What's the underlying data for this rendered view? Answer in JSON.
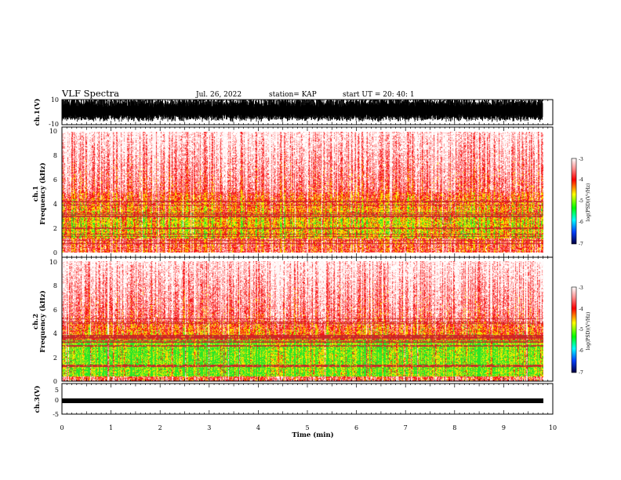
{
  "header": {
    "title": "VLF Spectra",
    "date": "Jul. 26, 2022",
    "station": "station= KAP",
    "start": "start UT =  20: 40: 1"
  },
  "chart_data": [
    {
      "type": "line",
      "name": "ch1-waveform",
      "ylabel": "ch.1(V)",
      "ylim": [
        -10,
        10
      ],
      "yticks": [
        "10",
        "-10"
      ],
      "xlim": [
        0,
        10
      ],
      "data_end_min": 9.8
    },
    {
      "type": "heatmap",
      "name": "ch1-spectrogram",
      "ylabel_line1": "ch.1",
      "ylabel_line2": "Frequency (kHz)",
      "ylim": [
        0,
        10
      ],
      "yticks": [
        "0",
        "2",
        "4",
        "6",
        "8",
        "10"
      ],
      "xlim": [
        0,
        10
      ],
      "data_end_min": 9.8,
      "colorbar": {
        "label": "log(PSD)(V²/Hz)",
        "range": [
          -7,
          -3
        ],
        "ticks": [
          "-3",
          "-4",
          "-5",
          "-6",
          "-7"
        ]
      }
    },
    {
      "type": "heatmap",
      "name": "ch2-spectrogram",
      "ylabel_line1": "ch.2",
      "ylabel_line2": "Frequency (kHz)",
      "ylim": [
        0,
        10
      ],
      "yticks": [
        "0",
        "2",
        "4",
        "6",
        "8",
        "10"
      ],
      "xlim": [
        0,
        10
      ],
      "data_end_min": 9.8,
      "colorbar": {
        "label": "log(PSD)(V²/Hz)",
        "range": [
          -7,
          -3
        ],
        "ticks": [
          "-3",
          "-4",
          "-5",
          "-6",
          "-7"
        ]
      }
    },
    {
      "type": "line",
      "name": "ch3-waveform",
      "ylabel": "ch.3(V)",
      "ylim": [
        -5,
        5
      ],
      "yticks": [
        "5",
        "0",
        "-5"
      ],
      "xlim": [
        0,
        10
      ],
      "data_end_min": 9.8,
      "xlabel": "Time (min)",
      "xticks": [
        "0",
        "1",
        "2",
        "3",
        "4",
        "5",
        "6",
        "7",
        "8",
        "9",
        "10"
      ]
    }
  ],
  "colors": {
    "spectrum_low": "#ffe0e0",
    "spectrum_mid": "#ff2020",
    "spectrum_yellow": "#f0f000",
    "spectrum_green": "#20e020",
    "waveform": "#000000"
  }
}
